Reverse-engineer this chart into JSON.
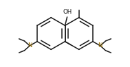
{
  "bg_color": "#ffffff",
  "bond_color": "#1a1a1a",
  "n_color": "#9B7000",
  "line_width": 1.1,
  "figsize": [
    1.89,
    0.98
  ],
  "dpi": 100,
  "xlim": [
    -1.1,
    1.1
  ],
  "ylim": [
    -0.72,
    0.52
  ]
}
